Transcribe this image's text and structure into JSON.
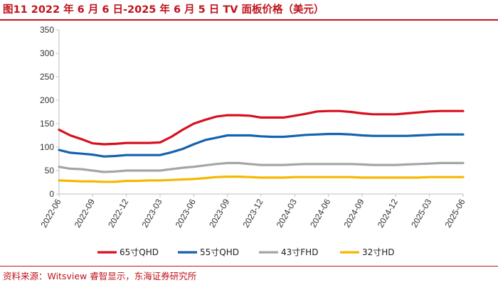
{
  "figure": {
    "title": "图11  2022 年 6 月 6 日-2025 年 6 月 5 日 TV 面板价格（美元）",
    "source": "资料来源：Witsview 睿智显示，东海证券研究所"
  },
  "chart_data": {
    "type": "line",
    "title": "2022 年 6 月 6 日-2025 年 6 月 5 日 TV 面板价格（美元）",
    "xlabel": "",
    "ylabel": "",
    "ylim": [
      0,
      350
    ],
    "yticks": [
      0,
      50,
      100,
      150,
      200,
      250,
      300,
      350
    ],
    "x_range": [
      "2022-06",
      "2025-06"
    ],
    "xtick_labels": [
      "2022-06",
      "2022-09",
      "2022-12",
      "2023-03",
      "2023-06",
      "2023-09",
      "2023-12",
      "2024-03",
      "2024-06",
      "2024-09",
      "2024-12",
      "2025-03",
      "2025-06"
    ],
    "grid": false,
    "legend_position": "bottom",
    "x": [
      "2022-06",
      "2022-07",
      "2022-08",
      "2022-09",
      "2022-10",
      "2022-11",
      "2022-12",
      "2023-01",
      "2023-02",
      "2023-03",
      "2023-04",
      "2023-05",
      "2023-06",
      "2023-07",
      "2023-08",
      "2023-09",
      "2023-10",
      "2023-11",
      "2023-12",
      "2024-01",
      "2024-02",
      "2024-03",
      "2024-04",
      "2024-05",
      "2024-06",
      "2024-07",
      "2024-08",
      "2024-09",
      "2024-10",
      "2024-11",
      "2024-12",
      "2025-01",
      "2025-02",
      "2025-03",
      "2025-04",
      "2025-05",
      "2025-06"
    ],
    "series": [
      {
        "name": "65寸QHD",
        "color": "#d7101e",
        "values": [
          137,
          125,
          117,
          108,
          106,
          107,
          109,
          109,
          109,
          110,
          122,
          137,
          150,
          158,
          165,
          168,
          168,
          167,
          163,
          163,
          163,
          167,
          171,
          176,
          177,
          177,
          175,
          172,
          170,
          170,
          170,
          172,
          174,
          176,
          177,
          177,
          177
        ]
      },
      {
        "name": "55寸QHD",
        "color": "#1462b0",
        "values": [
          94,
          88,
          86,
          84,
          80,
          81,
          83,
          83,
          83,
          83,
          89,
          96,
          106,
          115,
          120,
          125,
          125,
          125,
          123,
          122,
          122,
          124,
          126,
          127,
          128,
          128,
          127,
          125,
          124,
          124,
          124,
          124,
          125,
          126,
          127,
          127,
          127
        ]
      },
      {
        "name": "43寸FHD",
        "color": "#a5a5a5",
        "values": [
          58,
          54,
          53,
          50,
          47,
          48,
          50,
          50,
          50,
          50,
          53,
          56,
          58,
          61,
          64,
          66,
          66,
          64,
          62,
          62,
          62,
          63,
          64,
          64,
          64,
          64,
          64,
          63,
          62,
          62,
          62,
          63,
          64,
          65,
          66,
          66,
          66
        ]
      },
      {
        "name": "32寸HD",
        "color": "#f5b800",
        "values": [
          29,
          28,
          27,
          27,
          26,
          26,
          28,
          28,
          29,
          29,
          30,
          31,
          32,
          34,
          36,
          37,
          37,
          36,
          35,
          35,
          35,
          36,
          36,
          36,
          36,
          36,
          36,
          35,
          35,
          35,
          35,
          35,
          35,
          36,
          36,
          36,
          36
        ]
      }
    ]
  }
}
